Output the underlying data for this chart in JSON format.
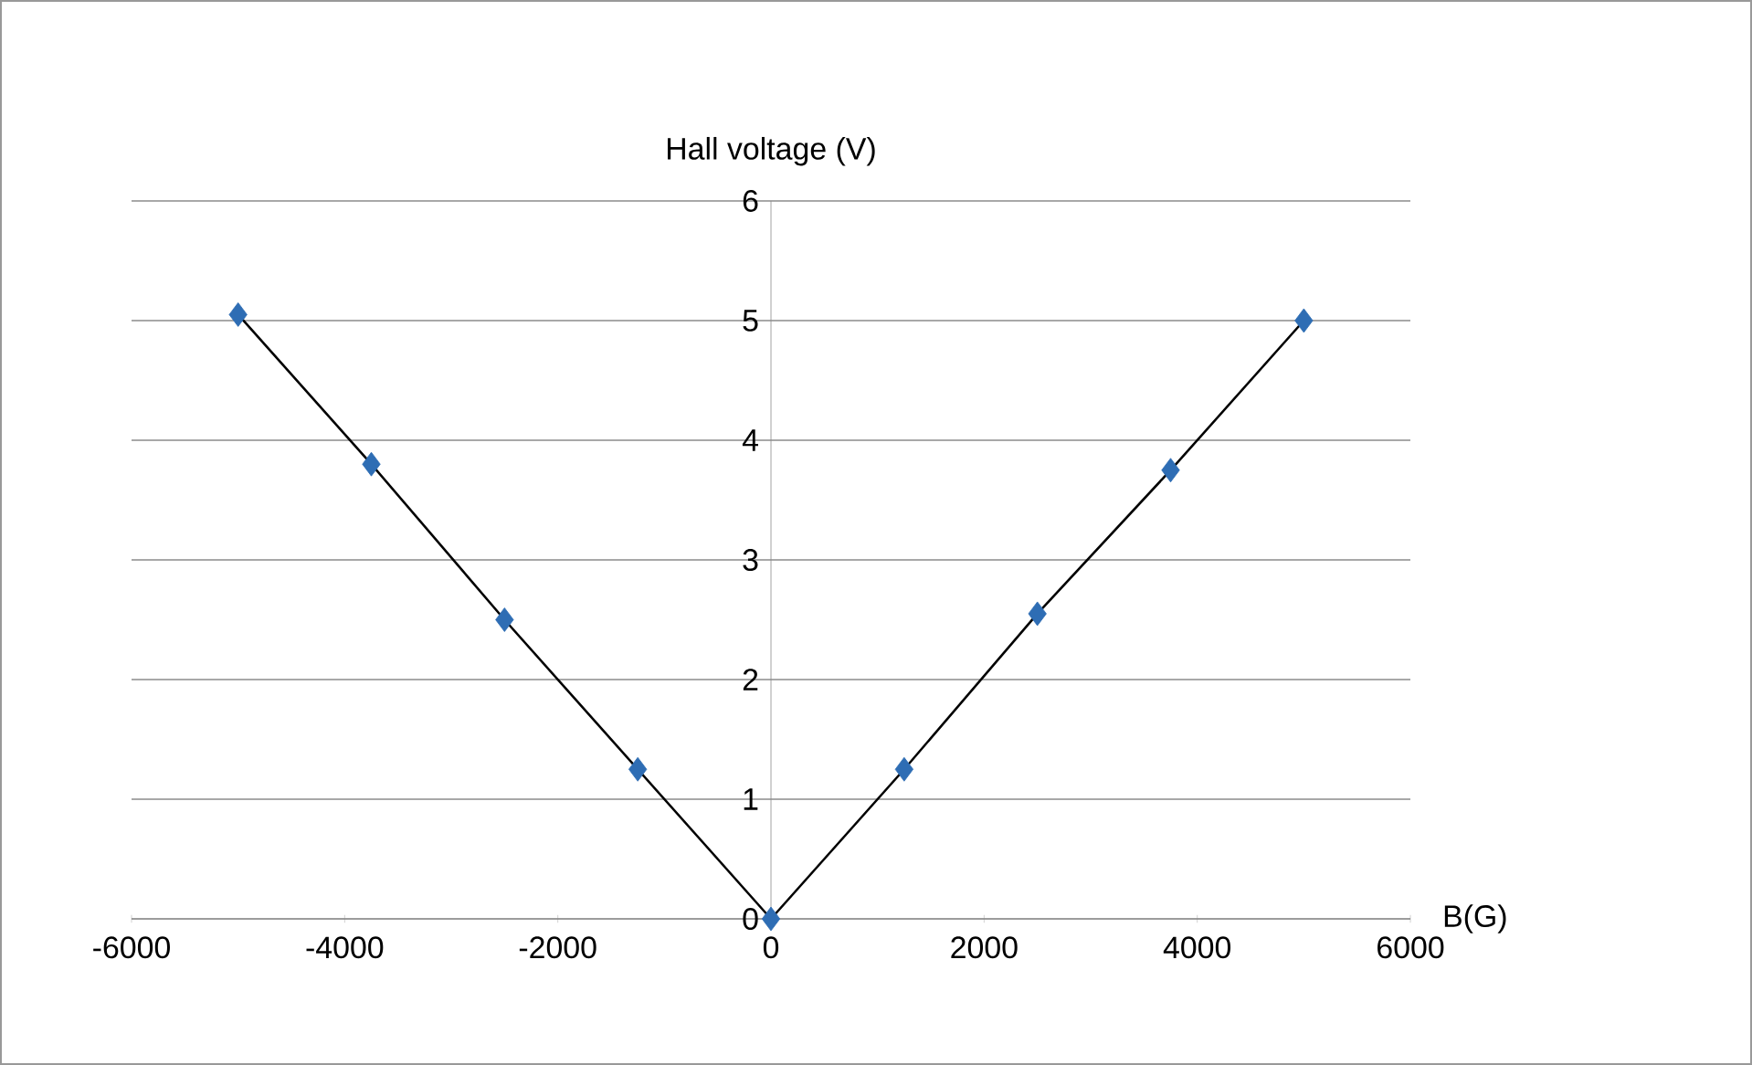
{
  "chart_data": {
    "type": "scatter",
    "ylabel": "Hall voltage (V)",
    "xlabel": "B(G)",
    "series": [
      {
        "color": "#2e6db4",
        "marker": "diamond",
        "x": [
          -5000,
          -3750,
          -2500,
          -1250,
          0,
          1250,
          2500,
          3750,
          5000
        ],
        "values": [
          5.05,
          3.8,
          2.5,
          1.25,
          0,
          1.25,
          2.55,
          3.75,
          5.0
        ]
      },
      {
        "type": "line",
        "color": "#000000",
        "marker": "none",
        "line_style": "solid",
        "x": [
          -5000,
          -3750,
          -2500,
          -1250,
          0,
          1250,
          2500,
          3750,
          5000
        ],
        "values": [
          5.05,
          3.8,
          2.5,
          1.25,
          0,
          1.25,
          2.55,
          3.75,
          5.0
        ]
      }
    ],
    "xlim": [
      -6000,
      6000
    ],
    "xticks": [
      -6000,
      -4000,
      -2000,
      0,
      2000,
      4000,
      6000
    ],
    "ylim": [
      0,
      6
    ],
    "yticks": [
      0,
      1,
      2,
      3,
      4,
      5,
      6
    ],
    "grid": "y"
  }
}
